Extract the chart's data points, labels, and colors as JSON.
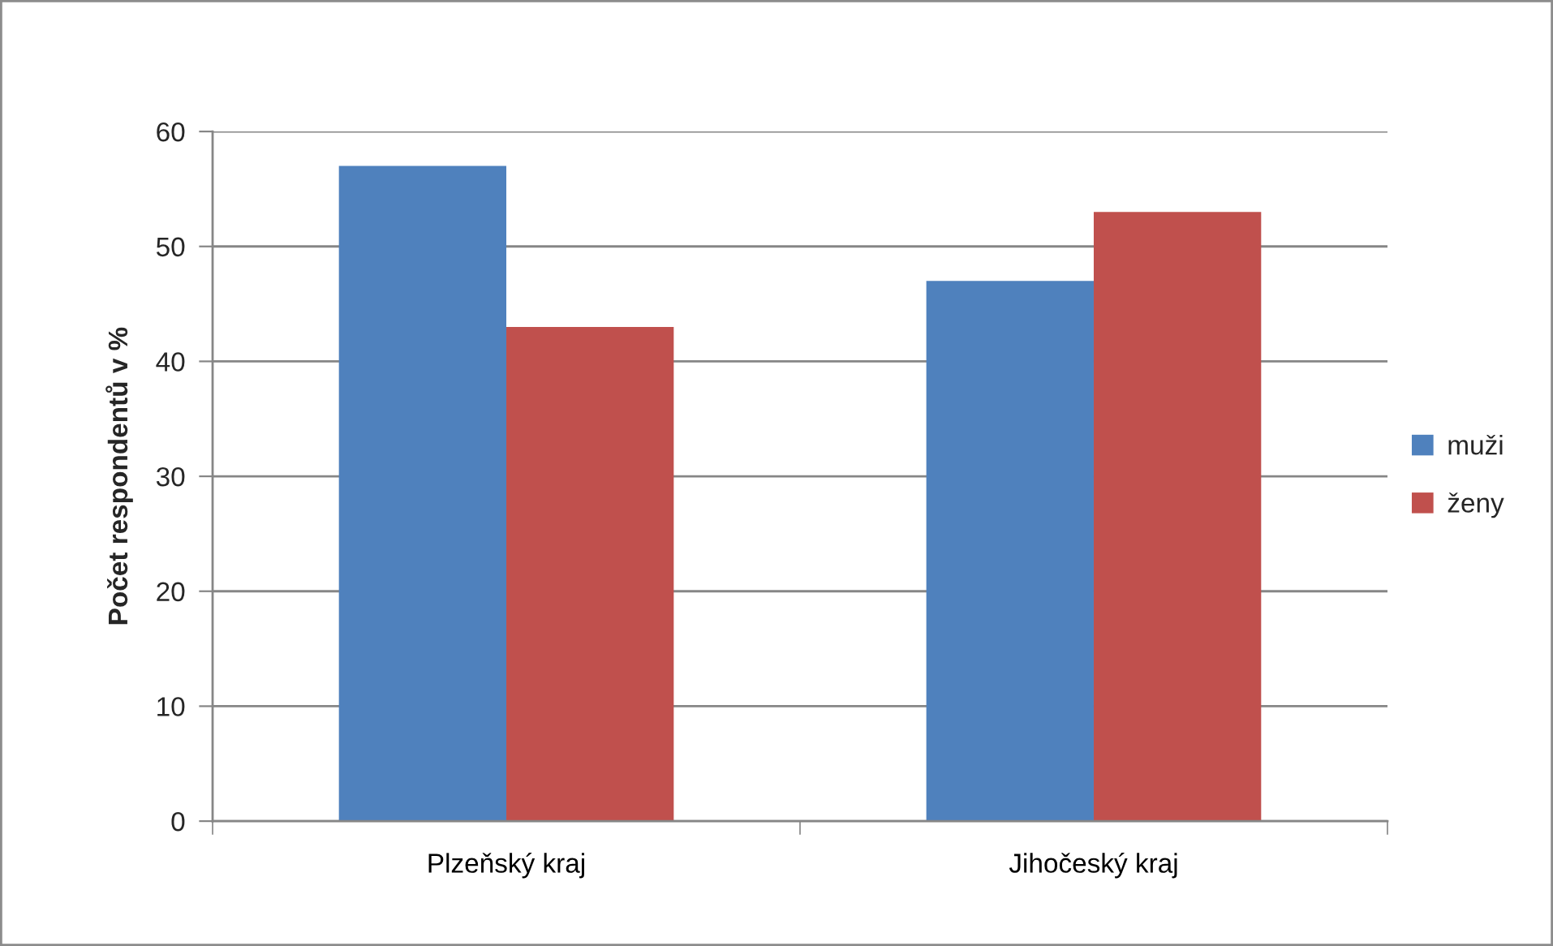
{
  "chart_data": {
    "type": "bar",
    "ylabel": "Počet respondentů v %",
    "categories": [
      "Plzeňský kraj",
      "Jihočeský kraj"
    ],
    "series": [
      {
        "name": "muži",
        "color": "#4f81bd",
        "values": [
          57,
          47
        ]
      },
      {
        "name": "ženy",
        "color": "#c0504d",
        "values": [
          43,
          53
        ]
      }
    ],
    "ylim": [
      0,
      60
    ],
    "yticks": [
      0,
      10,
      20,
      30,
      40,
      50,
      60
    ],
    "grid": "y",
    "legend": "right"
  }
}
